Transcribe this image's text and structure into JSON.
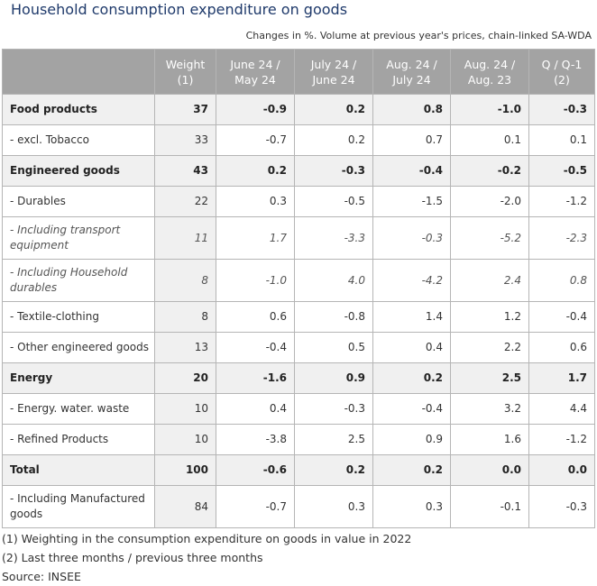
{
  "title": "Household consumption expenditure on goods",
  "subtitle": "Changes in %. Volume at previous year's prices, chain-linked SA-WDA",
  "columns": [
    "",
    "Weight\n(1)",
    "June 24 /\nMay 24",
    "July 24 /\nJune 24",
    "Aug. 24 /\nJuly 24",
    "Aug. 24 /\nAug. 23",
    "Q / Q-1\n(2)"
  ],
  "header": {
    "weight": [
      "Weight",
      "(1)"
    ],
    "c1": [
      "June 24 /",
      "May 24"
    ],
    "c2": [
      "July 24 /",
      "June 24"
    ],
    "c3": [
      "Aug. 24 /",
      "July 24"
    ],
    "c4": [
      "Aug. 24 /",
      "Aug. 23"
    ],
    "c5": [
      "Q / Q-1",
      "(2)"
    ]
  },
  "rows": [
    {
      "label": "Food products",
      "style": "bold",
      "weight": "37",
      "v": [
        "-0.9",
        "0.2",
        "0.8",
        "-1.0",
        "-0.3"
      ]
    },
    {
      "label": "- excl. Tobacco",
      "style": "normal",
      "weight": "33",
      "v": [
        "-0.7",
        "0.2",
        "0.7",
        "0.1",
        "0.1"
      ]
    },
    {
      "label": "Engineered goods",
      "style": "bold",
      "weight": "43",
      "v": [
        "0.2",
        "-0.3",
        "-0.4",
        "-0.2",
        "-0.5"
      ]
    },
    {
      "label": "- Durables",
      "style": "normal",
      "weight": "22",
      "v": [
        "0.3",
        "-0.5",
        "-1.5",
        "-2.0",
        "-1.2"
      ]
    },
    {
      "label": "- Including transport equipment",
      "style": "italic",
      "weight": "11",
      "v": [
        "1.7",
        "-3.3",
        "-0.3",
        "-5.2",
        "-2.3"
      ]
    },
    {
      "label": "- Including Household durables",
      "style": "italic",
      "weight": "8",
      "v": [
        "-1.0",
        "4.0",
        "-4.2",
        "2.4",
        "0.8"
      ]
    },
    {
      "label": "- Textile-clothing",
      "style": "normal",
      "weight": "8",
      "v": [
        "0.6",
        "-0.8",
        "1.4",
        "1.2",
        "-0.4"
      ]
    },
    {
      "label": "- Other engineered goods",
      "style": "normal",
      "weight": "13",
      "v": [
        "-0.4",
        "0.5",
        "0.4",
        "2.2",
        "0.6"
      ]
    },
    {
      "label": "Energy",
      "style": "bold",
      "weight": "20",
      "v": [
        "-1.6",
        "0.9",
        "0.2",
        "2.5",
        "1.7"
      ]
    },
    {
      "label": "- Energy. water. waste",
      "style": "normal",
      "weight": "10",
      "v": [
        "0.4",
        "-0.3",
        "-0.4",
        "3.2",
        "4.4"
      ]
    },
    {
      "label": "- Refined Products",
      "style": "normal",
      "weight": "10",
      "v": [
        "-3.8",
        "2.5",
        "0.9",
        "1.6",
        "-1.2"
      ]
    },
    {
      "label": "Total",
      "style": "bold",
      "weight": "100",
      "v": [
        "-0.6",
        "0.2",
        "0.2",
        "0.0",
        "0.0"
      ]
    },
    {
      "label": "- Including Manufactured goods",
      "style": "normal",
      "weight": "84",
      "v": [
        "-0.7",
        "0.3",
        "0.3",
        "-0.1",
        "-0.3"
      ]
    }
  ],
  "notes": [
    "(1) Weighting in the consumption expenditure on goods in value in 2022",
    "(2) Last three months / previous three months",
    "Source: INSEE"
  ]
}
